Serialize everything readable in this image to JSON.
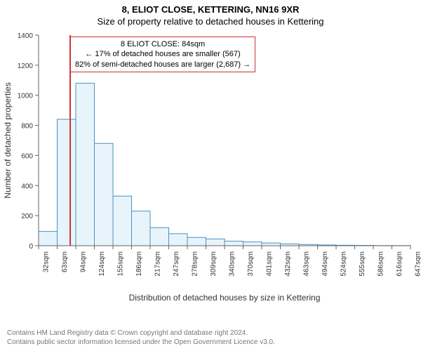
{
  "title_main": "8, ELIOT CLOSE, KETTERING, NN16 9XR",
  "title_sub": "Size of property relative to detached houses in Kettering",
  "ylabel": "Number of detached properties",
  "xlabel": "Distribution of detached houses by size in Kettering",
  "footer_line1": "Contains HM Land Registry data © Crown copyright and database right 2024.",
  "footer_line2": "Contains public sector information licensed under the Open Government Licence v3.0.",
  "annotation": {
    "line1": "8 ELIOT CLOSE: 84sqm",
    "line2": "← 17% of detached houses are smaller (567)",
    "line3": "82% of semi-detached houses are larger (2,687) →"
  },
  "chart": {
    "type": "histogram",
    "ylim": [
      0,
      1400
    ],
    "ytick_step": 200,
    "x_ticks": [
      "32sqm",
      "63sqm",
      "94sqm",
      "124sqm",
      "155sqm",
      "186sqm",
      "217sqm",
      "247sqm",
      "278sqm",
      "309sqm",
      "340sqm",
      "370sqm",
      "401sqm",
      "432sqm",
      "463sqm",
      "494sqm",
      "524sqm",
      "555sqm",
      "586sqm",
      "616sqm",
      "647sqm"
    ],
    "values": [
      95,
      840,
      1080,
      680,
      330,
      230,
      120,
      80,
      55,
      45,
      30,
      25,
      18,
      12,
      8,
      5,
      3,
      2,
      1,
      1
    ],
    "marker_x_index": 1.7,
    "bar_fill": "#e8f4fb",
    "bar_stroke": "#4a90c2",
    "marker_color": "#cc3333",
    "axis_color": "#666666",
    "tick_font_size": 10,
    "label_font_size": 12,
    "background": "#ffffff"
  }
}
